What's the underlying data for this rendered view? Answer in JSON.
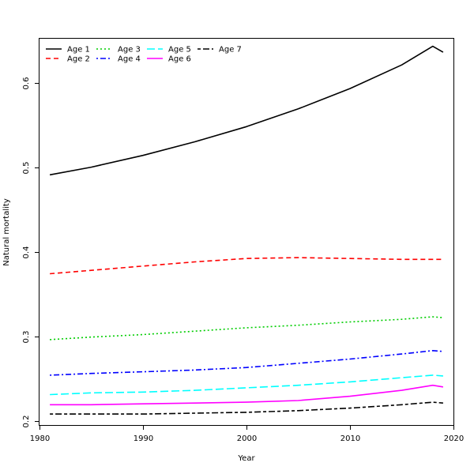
{
  "chart_data": {
    "type": "line",
    "title": "",
    "xlabel": "Year",
    "ylabel": "Natural mortality",
    "xlim": [
      1980,
      2020
    ],
    "ylim": [
      0.195,
      0.652
    ],
    "xticks": [
      1980,
      1990,
      2000,
      2010,
      2020
    ],
    "yticks": [
      0.2,
      0.3,
      0.4,
      0.5,
      0.6
    ],
    "ytick_labels": [
      "0.2",
      "0.3",
      "0.4",
      "0.5",
      "0.6"
    ],
    "grid": false,
    "legend_position": "top-left",
    "x": [
      1981,
      1985,
      1990,
      1995,
      2000,
      2005,
      2010,
      2015,
      2018,
      2019
    ],
    "series": [
      {
        "name": "Age 1",
        "color": "#000000",
        "dash": "solid",
        "values": [
          0.491,
          0.5,
          0.514,
          0.53,
          0.548,
          0.569,
          0.593,
          0.621,
          0.643,
          0.636
        ]
      },
      {
        "name": "Age 2",
        "color": "#ff0000",
        "dash": "dashed",
        "values": [
          0.374,
          0.378,
          0.383,
          0.388,
          0.392,
          0.393,
          0.392,
          0.391,
          0.391,
          0.391
        ]
      },
      {
        "name": "Age 3",
        "color": "#00cd00",
        "dash": "dotted",
        "values": [
          0.296,
          0.299,
          0.302,
          0.306,
          0.31,
          0.313,
          0.317,
          0.32,
          0.323,
          0.322
        ]
      },
      {
        "name": "Age 4",
        "color": "#0000ff",
        "dash": "dotdash",
        "values": [
          0.254,
          0.256,
          0.258,
          0.26,
          0.263,
          0.268,
          0.273,
          0.279,
          0.283,
          0.282
        ]
      },
      {
        "name": "Age 5",
        "color": "#00ffff",
        "dash": "longdash",
        "values": [
          0.231,
          0.233,
          0.234,
          0.236,
          0.239,
          0.242,
          0.246,
          0.251,
          0.254,
          0.253
        ]
      },
      {
        "name": "Age 6",
        "color": "#ff00ff",
        "dash": "solid",
        "values": [
          0.219,
          0.219,
          0.22,
          0.221,
          0.222,
          0.224,
          0.229,
          0.236,
          0.242,
          0.24
        ]
      },
      {
        "name": "Age 7",
        "color": "#000000",
        "dash": "twodash",
        "values": [
          0.208,
          0.208,
          0.208,
          0.209,
          0.21,
          0.212,
          0.215,
          0.219,
          0.222,
          0.221
        ]
      }
    ]
  }
}
